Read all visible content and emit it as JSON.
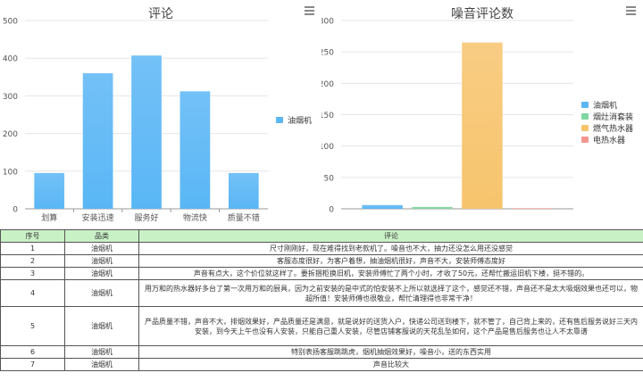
{
  "charts": {
    "left": {
      "title": "评论"
    },
    "right": {
      "title": "噪音评论数"
    }
  },
  "chart_data": [
    {
      "type": "bar",
      "title": "评论",
      "categories": [
        "划算",
        "安装迅速",
        "服务好",
        "物流快",
        "质量不错"
      ],
      "series": [
        {
          "name": "油烟机",
          "values": [
            95,
            360,
            407,
            312,
            95
          ],
          "color": "#5ab6f5"
        }
      ],
      "yticks": [
        0,
        100,
        200,
        300,
        400,
        500
      ],
      "ylim": [
        0,
        500
      ],
      "grid": true,
      "legend_position": "right"
    },
    {
      "type": "bar",
      "title": "噪音评论数",
      "categories": [
        ""
      ],
      "series": [
        {
          "name": "油烟机",
          "values": [
            6
          ],
          "color": "#5ab6f5"
        },
        {
          "name": "烟灶消套装",
          "values": [
            3
          ],
          "color": "#7ed6a0"
        },
        {
          "name": "燃气热水器",
          "values": [
            265
          ],
          "color": "#f7c46d"
        },
        {
          "name": "电热水器",
          "values": [
            1
          ],
          "color": "#f3978d"
        }
      ],
      "yticks": [
        0,
        50,
        100,
        150,
        200,
        250,
        300
      ],
      "ylim": [
        0,
        300
      ],
      "grid": true,
      "legend_position": "right"
    }
  ],
  "table": {
    "headers": [
      "序号",
      "品类",
      "评论"
    ],
    "rows": [
      {
        "id": "1",
        "category": "油烟机",
        "comment": "尺寸刚刚好，现在难得找到老款机了。噪音也不大，抽力还没怎么用还没感觉"
      },
      {
        "id": "2",
        "category": "油烟机",
        "comment": "客服态度很好，为客户着想，抽油烟机很好，声音不大，安装师傅态度好"
      },
      {
        "id": "3",
        "category": "油烟机",
        "comment": "声音有点大，这个价位就这样了。要拆捆柜换旧机，安装师傅忙了两个小时，才收了50元，还帮忙搬运旧机下楼，挺不错的。"
      },
      {
        "id": "4",
        "category": "油烟机",
        "comment": "用万和的热水器好多台了第一次用万和的厨具，因为之前安装的是中式的怕安装不上所以就选择了这个，感觉还不错，声音还不是太大吸烟效果也还可以，物超所值！安装师傅也很敬业，帮忙清理得也非常干净！"
      },
      {
        "id": "5",
        "category": "油烟机",
        "comment": "产品质量不错，声音不大，排烟效果好，产品质量还是满意，就是说好的送货入户，快递公司送到楼下，就不管了，自己背上来的，还有售后服务说好三天内安装，到今天上午也没有人安装，只能自己重人安装，尽管店铺客服说的天花乱坠如何，这个产品是售后服务也让人不太靠谱"
      },
      {
        "id": "6",
        "category": "油烟机",
        "comment": "特别表扬客服跳跳虎，烟机抽烟效果好，噪音小，送的东西实用"
      },
      {
        "id": "7",
        "category": "油烟机",
        "comment": "声音比较大"
      }
    ]
  }
}
